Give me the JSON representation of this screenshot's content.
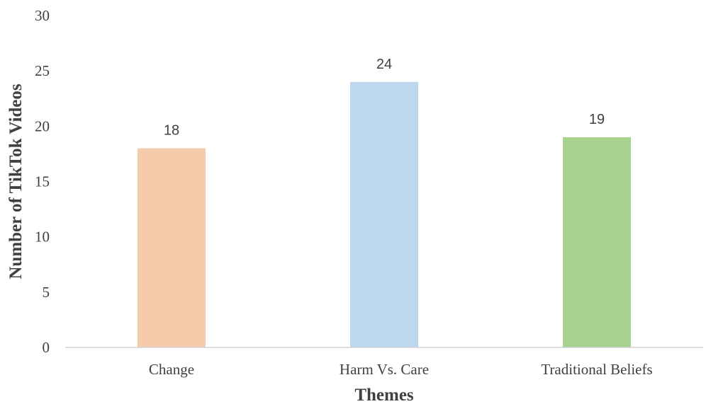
{
  "chart_data": {
    "type": "bar",
    "categories": [
      "Change",
      "Harm Vs. Care",
      "Traditional Beliefs"
    ],
    "values": [
      18,
      24,
      19
    ],
    "data_labels": [
      "18",
      "24",
      "19"
    ],
    "colors": [
      "#f6cbab",
      "#bdd7ee",
      "#a9d18e"
    ],
    "xlabel": "Themes",
    "ylabel": "Number of TikTok Videos",
    "ylim": [
      0,
      30
    ],
    "yticks": [
      "0",
      "5",
      "10",
      "15",
      "20",
      "25",
      "30"
    ],
    "grid": false,
    "legend": "none"
  }
}
